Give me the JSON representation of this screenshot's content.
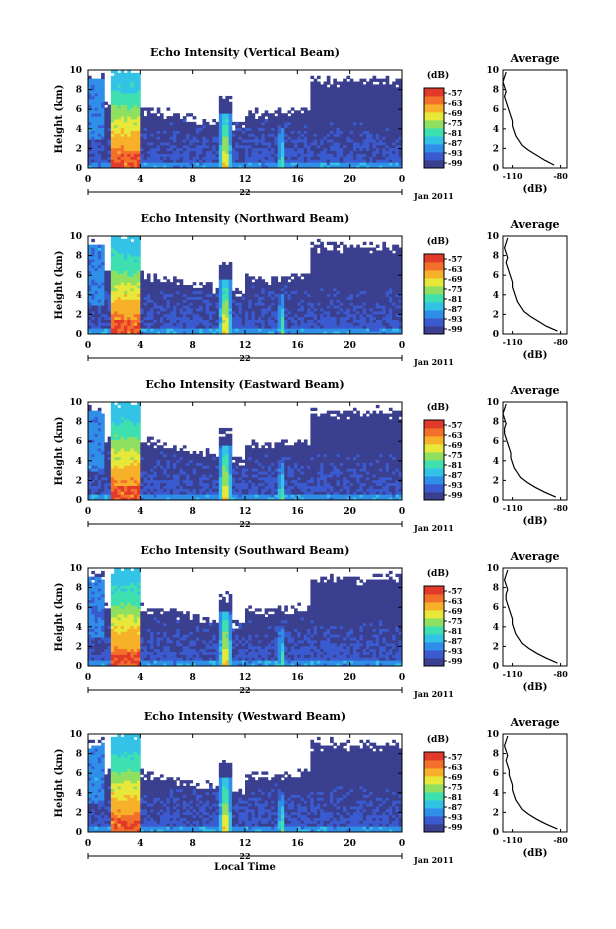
{
  "chart_data": [
    {
      "type": "heatmap",
      "title": "Echo Intensity (Vertical Beam)",
      "ylabel": "Height (km)",
      "xlabel": "",
      "y_ticks": [
        "0",
        "2",
        "4",
        "6",
        "8",
        "10"
      ],
      "x_ticks": [
        "0",
        "4",
        "8",
        "12",
        "16",
        "20",
        "0"
      ],
      "xlim": [
        0,
        24
      ],
      "ylim": [
        0,
        10
      ],
      "date_label": "22",
      "date_suffix": "Jan 2011",
      "colorbar": {
        "unit": "(dB)",
        "ticks": [
          "-57",
          "-63",
          "-69",
          "-75",
          "-81",
          "-87",
          "-93",
          "-99"
        ],
        "range": [
          -99,
          -57
        ]
      },
      "profile": {
        "title": "Average",
        "xlabel": "(dB)",
        "x_ticks": [
          "-110",
          "-80"
        ],
        "xlim": [
          -116,
          -76
        ],
        "y_ticks": [
          "0",
          "2",
          "4",
          "6",
          "8",
          "10"
        ],
        "x": [
          -84,
          -90,
          -95,
          -100,
          -104,
          -106,
          -108,
          -109,
          -110,
          -110,
          -111,
          -112,
          -113,
          -114,
          -115,
          -114,
          -115,
          -116,
          -115,
          -114
        ],
        "y": [
          0.3,
          0.8,
          1.3,
          1.8,
          2.3,
          2.8,
          3.3,
          3.8,
          4.3,
          4.8,
          5.3,
          5.8,
          6.3,
          6.8,
          7.3,
          7.8,
          8.3,
          8.8,
          9.3,
          9.8
        ]
      },
      "events": {
        "rain_start_hr": 1.8,
        "rain_end_hr": 4.0,
        "shower1_hr": 10.5,
        "shower2_hr": 14.8
      }
    },
    {
      "type": "heatmap",
      "title": "Echo Intensity (Northward Beam)",
      "ylabel": "Height (km)",
      "xlabel": "",
      "y_ticks": [
        "0",
        "2",
        "4",
        "6",
        "8",
        "10"
      ],
      "x_ticks": [
        "0",
        "4",
        "8",
        "12",
        "16",
        "20",
        "0"
      ],
      "xlim": [
        0,
        24
      ],
      "ylim": [
        0,
        10
      ],
      "date_label": "22",
      "date_suffix": "Jan 2011",
      "colorbar": {
        "unit": "(dB)",
        "ticks": [
          "-57",
          "-63",
          "-69",
          "-75",
          "-81",
          "-87",
          "-93",
          "-99"
        ],
        "range": [
          -99,
          -57
        ]
      },
      "profile": {
        "title": "Average",
        "xlabel": "(dB)",
        "x_ticks": [
          "-110",
          "-80"
        ],
        "xlim": [
          -116,
          -76
        ],
        "y_ticks": [
          "0",
          "2",
          "4",
          "6",
          "8",
          "10"
        ],
        "x": [
          -82,
          -89,
          -94,
          -99,
          -103,
          -105,
          -107,
          -108,
          -109,
          -110,
          -110,
          -111,
          -112,
          -113,
          -114,
          -113,
          -114,
          -115,
          -114,
          -113
        ],
        "y": [
          0.3,
          0.8,
          1.3,
          1.8,
          2.3,
          2.8,
          3.3,
          3.8,
          4.3,
          4.8,
          5.3,
          5.8,
          6.3,
          6.8,
          7.3,
          7.8,
          8.3,
          8.8,
          9.3,
          9.8
        ]
      },
      "events": {
        "rain_start_hr": 1.8,
        "rain_end_hr": 4.0,
        "shower1_hr": 10.5,
        "shower2_hr": 14.8
      }
    },
    {
      "type": "heatmap",
      "title": "Echo Intensity (Eastward Beam)",
      "ylabel": "Height (km)",
      "xlabel": "",
      "y_ticks": [
        "0",
        "2",
        "4",
        "6",
        "8",
        "10"
      ],
      "x_ticks": [
        "0",
        "4",
        "8",
        "12",
        "16",
        "20",
        "0"
      ],
      "xlim": [
        0,
        24
      ],
      "ylim": [
        0,
        10
      ],
      "date_label": "22",
      "date_suffix": "Jan 2011",
      "colorbar": {
        "unit": "(dB)",
        "ticks": [
          "-57",
          "-63",
          "-69",
          "-75",
          "-81",
          "-87",
          "-93",
          "-99"
        ],
        "range": [
          -99,
          -57
        ]
      },
      "profile": {
        "title": "Average",
        "xlabel": "(dB)",
        "x_ticks": [
          "-110",
          "-80"
        ],
        "xlim": [
          -116,
          -76
        ],
        "y_ticks": [
          "0",
          "2",
          "4",
          "6",
          "8",
          "10"
        ],
        "x": [
          -83,
          -90,
          -96,
          -101,
          -105,
          -107,
          -109,
          -110,
          -111,
          -111,
          -112,
          -113,
          -114,
          -115,
          -115,
          -114,
          -115,
          -116,
          -115,
          -114
        ],
        "y": [
          0.3,
          0.8,
          1.3,
          1.8,
          2.3,
          2.8,
          3.3,
          3.8,
          4.3,
          4.8,
          5.3,
          5.8,
          6.3,
          6.8,
          7.3,
          7.8,
          8.3,
          8.8,
          9.3,
          9.8
        ]
      },
      "events": {
        "rain_start_hr": 1.8,
        "rain_end_hr": 4.0,
        "shower1_hr": 10.5,
        "shower2_hr": 14.8
      }
    },
    {
      "type": "heatmap",
      "title": "Echo Intensity (Southward Beam)",
      "ylabel": "Height (km)",
      "xlabel": "",
      "y_ticks": [
        "0",
        "2",
        "4",
        "6",
        "8",
        "10"
      ],
      "x_ticks": [
        "0",
        "4",
        "8",
        "12",
        "16",
        "20",
        "0"
      ],
      "xlim": [
        0,
        24
      ],
      "ylim": [
        0,
        10
      ],
      "date_label": "22",
      "date_suffix": "Jan 2011",
      "colorbar": {
        "unit": "(dB)",
        "ticks": [
          "-57",
          "-63",
          "-69",
          "-75",
          "-81",
          "-87",
          "-93",
          "-99"
        ],
        "range": [
          -99,
          -57
        ]
      },
      "profile": {
        "title": "Average",
        "xlabel": "(dB)",
        "x_ticks": [
          "-110",
          "-80"
        ],
        "xlim": [
          -116,
          -76
        ],
        "y_ticks": [
          "0",
          "2",
          "4",
          "6",
          "8",
          "10"
        ],
        "x": [
          -82,
          -89,
          -95,
          -100,
          -104,
          -106,
          -108,
          -109,
          -110,
          -110,
          -111,
          -112,
          -113,
          -114,
          -114,
          -113,
          -114,
          -115,
          -114,
          -113
        ],
        "y": [
          0.3,
          0.8,
          1.3,
          1.8,
          2.3,
          2.8,
          3.3,
          3.8,
          4.3,
          4.8,
          5.3,
          5.8,
          6.3,
          6.8,
          7.3,
          7.8,
          8.3,
          8.8,
          9.3,
          9.8
        ]
      },
      "events": {
        "rain_start_hr": 1.8,
        "rain_end_hr": 4.0,
        "shower1_hr": 10.5,
        "shower2_hr": 14.8
      }
    },
    {
      "type": "heatmap",
      "title": "Echo Intensity (Westward Beam)",
      "ylabel": "Height (km)",
      "xlabel": "Local Time",
      "y_ticks": [
        "0",
        "2",
        "4",
        "6",
        "8",
        "10"
      ],
      "x_ticks": [
        "0",
        "4",
        "8",
        "12",
        "16",
        "20",
        "0"
      ],
      "xlim": [
        0,
        24
      ],
      "ylim": [
        0,
        10
      ],
      "date_label": "22",
      "date_suffix": "Jan 2011",
      "colorbar": {
        "unit": "(dB)",
        "ticks": [
          "-57",
          "-63",
          "-69",
          "-75",
          "-81",
          "-87",
          "-93",
          "-99"
        ],
        "range": [
          -99,
          -57
        ]
      },
      "profile": {
        "title": "Average",
        "xlabel": "(dB)",
        "x_ticks": [
          "-110",
          "-80"
        ],
        "xlim": [
          -116,
          -76
        ],
        "y_ticks": [
          "0",
          "2",
          "4",
          "6",
          "8",
          "10"
        ],
        "x": [
          -82,
          -89,
          -95,
          -100,
          -104,
          -106,
          -108,
          -109,
          -110,
          -110,
          -111,
          -112,
          -112,
          -113,
          -114,
          -113,
          -114,
          -115,
          -114,
          -113
        ],
        "y": [
          0.3,
          0.8,
          1.3,
          1.8,
          2.3,
          2.8,
          3.3,
          3.8,
          4.3,
          4.8,
          5.3,
          5.8,
          6.3,
          6.8,
          7.3,
          7.8,
          8.3,
          8.8,
          9.3,
          9.8
        ]
      },
      "events": {
        "rain_start_hr": 1.8,
        "rain_end_hr": 4.0,
        "shower1_hr": 10.5,
        "shower2_hr": 14.8
      }
    }
  ],
  "colormap": [
    "#3b3f8f",
    "#3a5bd0",
    "#2f8fe8",
    "#33c3e6",
    "#3fe0b0",
    "#8fe060",
    "#e8e83a",
    "#f7b02a",
    "#f3702a",
    "#e23a2a"
  ],
  "background_fill": "#3a3f8c"
}
